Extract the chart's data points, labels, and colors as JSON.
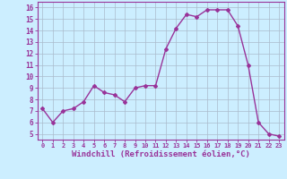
{
  "x": [
    0,
    1,
    2,
    3,
    4,
    5,
    6,
    7,
    8,
    9,
    10,
    11,
    12,
    13,
    14,
    15,
    16,
    17,
    18,
    19,
    20,
    21,
    22,
    23
  ],
  "y": [
    7.2,
    6.0,
    7.0,
    7.2,
    7.8,
    9.2,
    8.6,
    8.4,
    7.8,
    9.0,
    9.2,
    9.2,
    12.4,
    14.2,
    15.4,
    15.2,
    15.8,
    15.8,
    15.8,
    14.4,
    11.0,
    6.0,
    5.0,
    4.8
  ],
  "line_color": "#993399",
  "marker": "D",
  "marker_size": 2.0,
  "linewidth": 1.0,
  "xlabel": "Windchill (Refroidissement éolien,°C)",
  "xlabel_fontsize": 6.5,
  "xtick_labels": [
    "0",
    "1",
    "2",
    "3",
    "4",
    "5",
    "6",
    "7",
    "8",
    "9",
    "10",
    "11",
    "12",
    "13",
    "14",
    "15",
    "16",
    "17",
    "18",
    "19",
    "20",
    "21",
    "22",
    "23"
  ],
  "ytick_labels": [
    "5",
    "6",
    "7",
    "8",
    "9",
    "10",
    "11",
    "12",
    "13",
    "14",
    "15",
    "16"
  ],
  "ylim": [
    4.5,
    16.5
  ],
  "xlim": [
    -0.5,
    23.5
  ],
  "yticks": [
    5,
    6,
    7,
    8,
    9,
    10,
    11,
    12,
    13,
    14,
    15,
    16
  ],
  "bg_color": "#cceeff",
  "grid_color": "#aabbcc",
  "tick_color": "#993399",
  "label_color": "#993399",
  "axis_color": "#993399"
}
